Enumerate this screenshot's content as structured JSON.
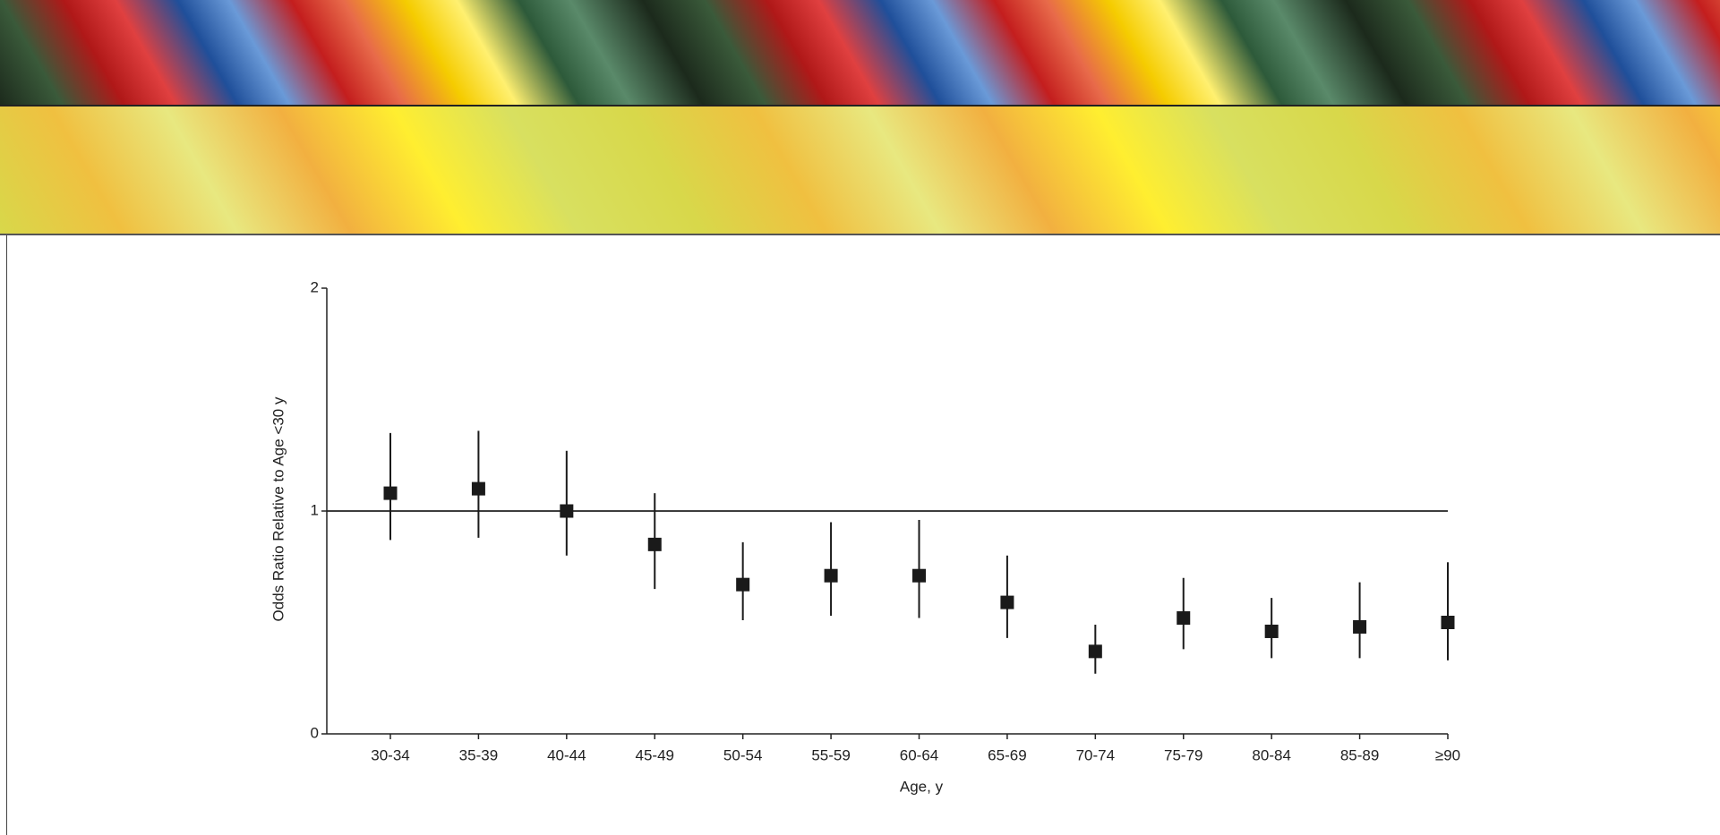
{
  "chart_data": {
    "type": "errorbar",
    "y_label": "Odds Ratio Relative to Age <30 y",
    "x_label": "Age, y",
    "categories": [
      "30-34",
      "35-39",
      "40-44",
      "45-49",
      "50-54",
      "55-59",
      "60-64",
      "65-69",
      "70-74",
      "75-79",
      "80-84",
      "85-89",
      "≥90"
    ],
    "values": [
      1.08,
      1.1,
      1.0,
      0.85,
      0.67,
      0.71,
      0.71,
      0.59,
      0.37,
      0.52,
      0.46,
      0.48,
      0.5
    ],
    "lower": [
      0.87,
      0.88,
      0.8,
      0.65,
      0.51,
      0.53,
      0.52,
      0.43,
      0.27,
      0.38,
      0.34,
      0.34,
      0.33
    ],
    "upper": [
      1.35,
      1.36,
      1.27,
      1.08,
      0.86,
      0.95,
      0.96,
      0.8,
      0.49,
      0.7,
      0.61,
      0.68,
      0.77
    ],
    "color": "#1a1a1a",
    "reference_line": 1,
    "ylim": [
      0,
      2
    ],
    "yticks": [
      0,
      1,
      2
    ]
  }
}
